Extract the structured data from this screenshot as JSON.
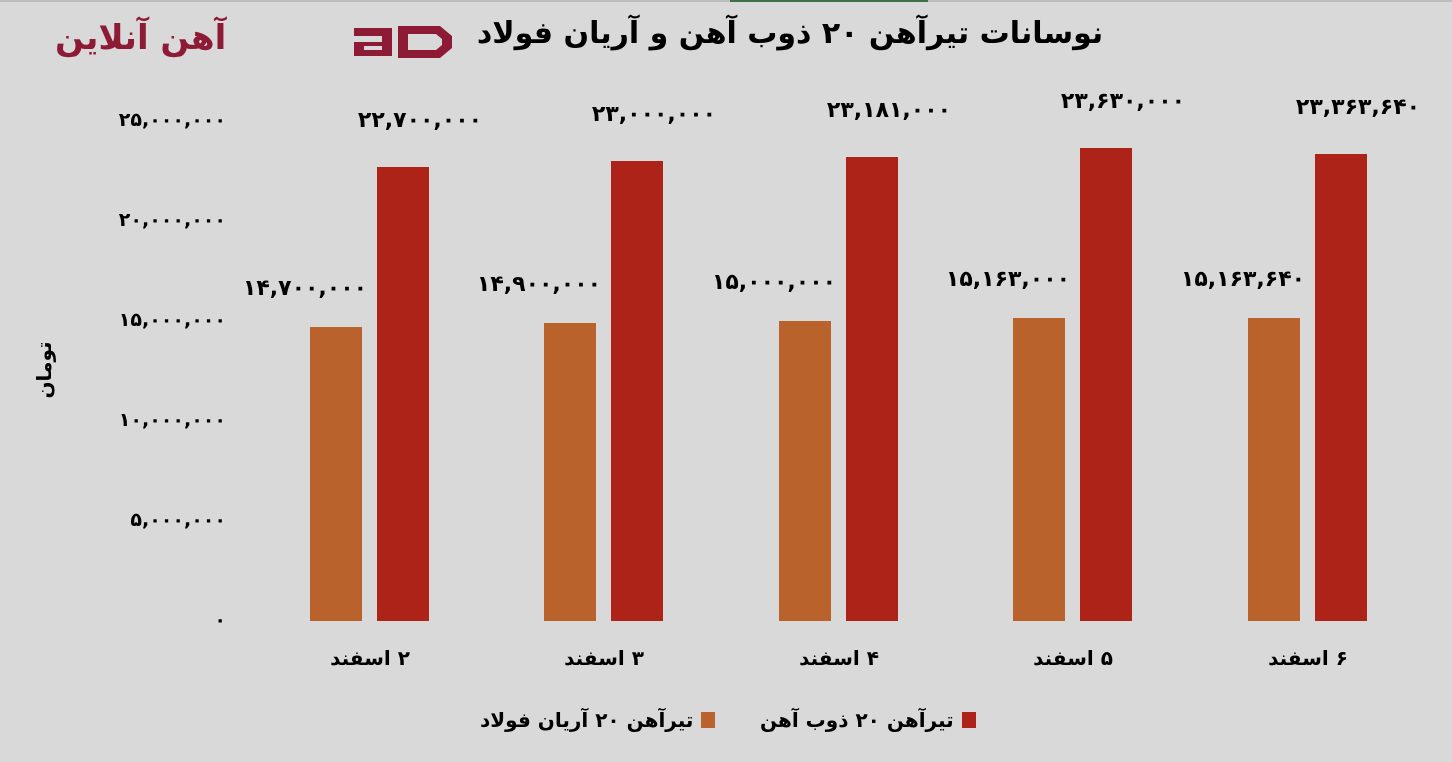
{
  "logo": {
    "text": "آهن آنلاین",
    "mark": "aD",
    "color": "#8e1b36"
  },
  "title": "نوسانات تیرآهن ۲۰ ذوب آهن و آریان فولاد",
  "colors": {
    "aryan": "#b9622b",
    "zob": "#ad2317",
    "background": "#d9d9d9",
    "accent_line": "#3f7046"
  },
  "y_axis": {
    "label": "تومان",
    "ticks": [
      "۲۵,۰۰۰,۰۰۰",
      "۲۰,۰۰۰,۰۰۰",
      "۱۵,۰۰۰,۰۰۰",
      "۱۰,۰۰۰,۰۰۰",
      "۵,۰۰۰,۰۰۰",
      "۰"
    ]
  },
  "x_axis": {
    "ticks": [
      "۲ اسفند",
      "۳ اسفند",
      "۴ اسفند",
      "۵ اسفند",
      "۶ اسفند"
    ]
  },
  "data_labels": {
    "aryan": [
      "۱۴,۷۰۰,۰۰۰",
      "۱۴,۹۰۰,۰۰۰",
      "۱۵,۰۰۰,۰۰۰",
      "۱۵,۱۶۳,۰۰۰",
      "۱۵,۱۶۳,۶۴۰"
    ],
    "zob": [
      "۲۲,۷۰۰,۰۰۰",
      "۲۳,۰۰۰,۰۰۰",
      "۲۳,۱۸۱,۰۰۰",
      "۲۳,۶۳۰,۰۰۰",
      "۲۳,۳۶۳,۶۴۰"
    ]
  },
  "legend": [
    {
      "label": "تیرآهن ۲۰ ذوب آهن",
      "color": "#ad2317"
    },
    {
      "label": "تیرآهن ۲۰ آریان فولاد",
      "color": "#b9622b"
    }
  ],
  "chart_data": {
    "type": "bar",
    "title": "نوسانات تیرآهن ۲۰ ذوب آهن و آریان فولاد",
    "xlabel": "",
    "ylabel": "تومان",
    "categories": [
      "۲ اسفند",
      "۳ اسفند",
      "۴ اسفند",
      "۵ اسفند",
      "۶ اسفند"
    ],
    "series": [
      {
        "name": "تیرآهن ۲۰ آریان فولاد",
        "color": "#b9622b",
        "values": [
          14700000,
          14900000,
          15000000,
          15163000,
          15163640
        ]
      },
      {
        "name": "تیرآهن ۲۰ ذوب آهن",
        "color": "#ad2317",
        "values": [
          22700000,
          23000000,
          23181000,
          23630000,
          23363640
        ]
      }
    ],
    "ylim": [
      0,
      25000000
    ],
    "yticks": [
      0,
      5000000,
      10000000,
      15000000,
      20000000,
      25000000
    ],
    "grid": false,
    "legend_position": "bottom"
  }
}
